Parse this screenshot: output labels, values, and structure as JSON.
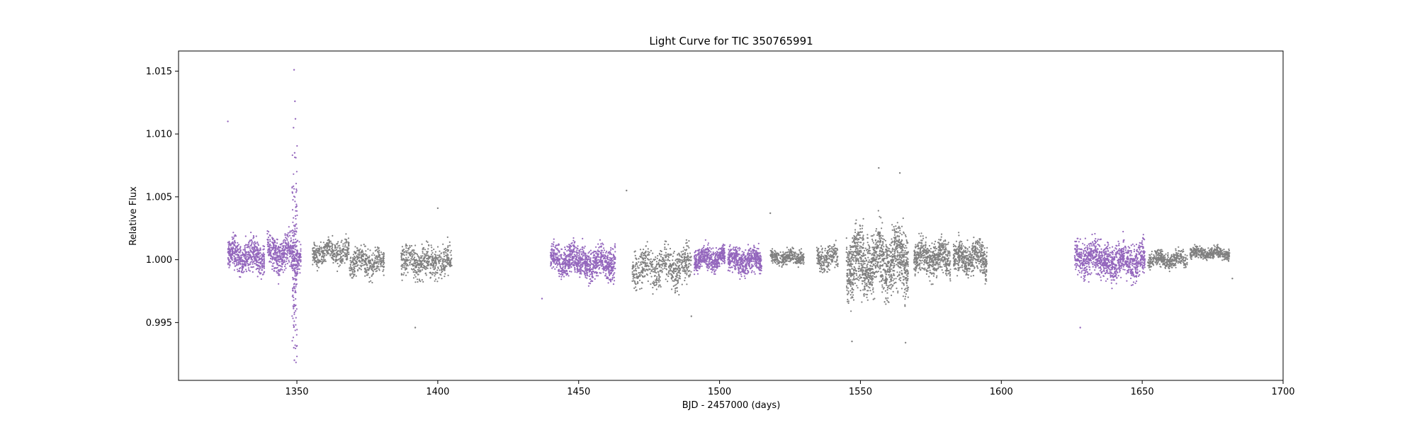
{
  "chart_data": {
    "type": "scatter",
    "title": "Light Curve for TIC 350765991",
    "xlabel": "BJD - 2457000 (days)",
    "ylabel": "Relative Flux",
    "xlim": [
      1308,
      1700
    ],
    "ylim": [
      0.9904,
      1.0166
    ],
    "xticks": [
      1350,
      1400,
      1450,
      1500,
      1550,
      1600,
      1650,
      1700
    ],
    "yticks": [
      0.995,
      1.0,
      1.005,
      1.01,
      1.015
    ],
    "xtick_labels": [
      "1350",
      "1400",
      "1450",
      "1500",
      "1550",
      "1600",
      "1650",
      "1700"
    ],
    "ytick_labels": [
      "0.995",
      "1.000",
      "1.005",
      "1.010",
      "1.015"
    ],
    "grid": false,
    "colors": {
      "highlight": "#9467bd",
      "base": "#808080"
    },
    "segments": [
      {
        "start": 1325.5,
        "end": 1338.5,
        "center": 1.0003,
        "spread": 0.0011,
        "color": "highlight",
        "density": 3
      },
      {
        "start": 1339.5,
        "end": 1351.5,
        "center": 1.0005,
        "spread": 0.0013,
        "color": "highlight",
        "density": 3
      },
      {
        "start": 1355.5,
        "end": 1368.5,
        "center": 1.0006,
        "spread": 0.0009,
        "color": "base",
        "density": 2
      },
      {
        "start": 1368.5,
        "end": 1381.0,
        "center": 0.9998,
        "spread": 0.001,
        "color": "base",
        "density": 2
      },
      {
        "start": 1387.0,
        "end": 1405.0,
        "center": 0.9998,
        "spread": 0.0011,
        "color": "base",
        "density": 2
      },
      {
        "start": 1440.0,
        "end": 1451.0,
        "center": 1.0,
        "spread": 0.0011,
        "color": "highlight",
        "density": 3
      },
      {
        "start": 1451.0,
        "end": 1463.0,
        "center": 0.9998,
        "spread": 0.0011,
        "color": "highlight",
        "density": 3
      },
      {
        "start": 1469.0,
        "end": 1490.0,
        "center": 0.9994,
        "spread": 0.0013,
        "color": "base",
        "density": 2
      },
      {
        "start": 1491.0,
        "end": 1502.0,
        "center": 1.0001,
        "spread": 0.0008,
        "color": "highlight",
        "density": 3
      },
      {
        "start": 1503.0,
        "end": 1515.0,
        "center": 0.9999,
        "spread": 0.0009,
        "color": "highlight",
        "density": 3
      },
      {
        "start": 1518.0,
        "end": 1530.0,
        "center": 1.0002,
        "spread": 0.0005,
        "color": "base",
        "density": 2
      },
      {
        "start": 1534.5,
        "end": 1542.0,
        "center": 1.0001,
        "spread": 0.0009,
        "color": "base",
        "density": 2
      },
      {
        "start": 1545.0,
        "end": 1567.0,
        "center": 0.9998,
        "spread": 0.0022,
        "color": "base",
        "density": 4
      },
      {
        "start": 1569.0,
        "end": 1582.0,
        "center": 1.0001,
        "spread": 0.0012,
        "color": "base",
        "density": 3
      },
      {
        "start": 1583.0,
        "end": 1595.0,
        "center": 1.0001,
        "spread": 0.0011,
        "color": "base",
        "density": 3
      },
      {
        "start": 1626.0,
        "end": 1638.0,
        "center": 1.0001,
        "spread": 0.0012,
        "color": "highlight",
        "density": 3
      },
      {
        "start": 1638.0,
        "end": 1651.0,
        "center": 0.9999,
        "spread": 0.0012,
        "color": "highlight",
        "density": 3
      },
      {
        "start": 1652.0,
        "end": 1666.0,
        "center": 1.0,
        "spread": 0.0006,
        "color": "base",
        "density": 2
      },
      {
        "start": 1667.0,
        "end": 1681.0,
        "center": 1.0005,
        "spread": 0.0004,
        "color": "base",
        "density": 2
      }
    ],
    "outliers": [
      {
        "x": 1325.5,
        "y": 1.011,
        "color": "highlight"
      },
      {
        "x": 1349.0,
        "y": 1.0151,
        "color": "highlight"
      },
      {
        "x": 1349.3,
        "y": 1.0126,
        "color": "highlight"
      },
      {
        "x": 1349.5,
        "y": 1.0112,
        "color": "highlight"
      },
      {
        "x": 1348.8,
        "y": 1.0105,
        "color": "highlight"
      },
      {
        "x": 1349.2,
        "y": 1.0085,
        "color": "highlight"
      },
      {
        "x": 1349.1,
        "y": 0.992,
        "color": "highlight"
      },
      {
        "x": 1348.9,
        "y": 0.993,
        "color": "highlight"
      },
      {
        "x": 1400.0,
        "y": 1.0041,
        "color": "base"
      },
      {
        "x": 1392.0,
        "y": 0.9946,
        "color": "base"
      },
      {
        "x": 1467.0,
        "y": 1.0055,
        "color": "base"
      },
      {
        "x": 1437.0,
        "y": 0.9969,
        "color": "highlight"
      },
      {
        "x": 1490.0,
        "y": 0.9955,
        "color": "base"
      },
      {
        "x": 1518.0,
        "y": 1.0037,
        "color": "base"
      },
      {
        "x": 1556.5,
        "y": 1.0073,
        "color": "base"
      },
      {
        "x": 1564.0,
        "y": 1.0069,
        "color": "base"
      },
      {
        "x": 1547.0,
        "y": 0.9935,
        "color": "base"
      },
      {
        "x": 1566.0,
        "y": 0.9934,
        "color": "base"
      },
      {
        "x": 1628.0,
        "y": 0.9946,
        "color": "highlight"
      },
      {
        "x": 1682.0,
        "y": 0.9985,
        "color": "base"
      }
    ]
  }
}
